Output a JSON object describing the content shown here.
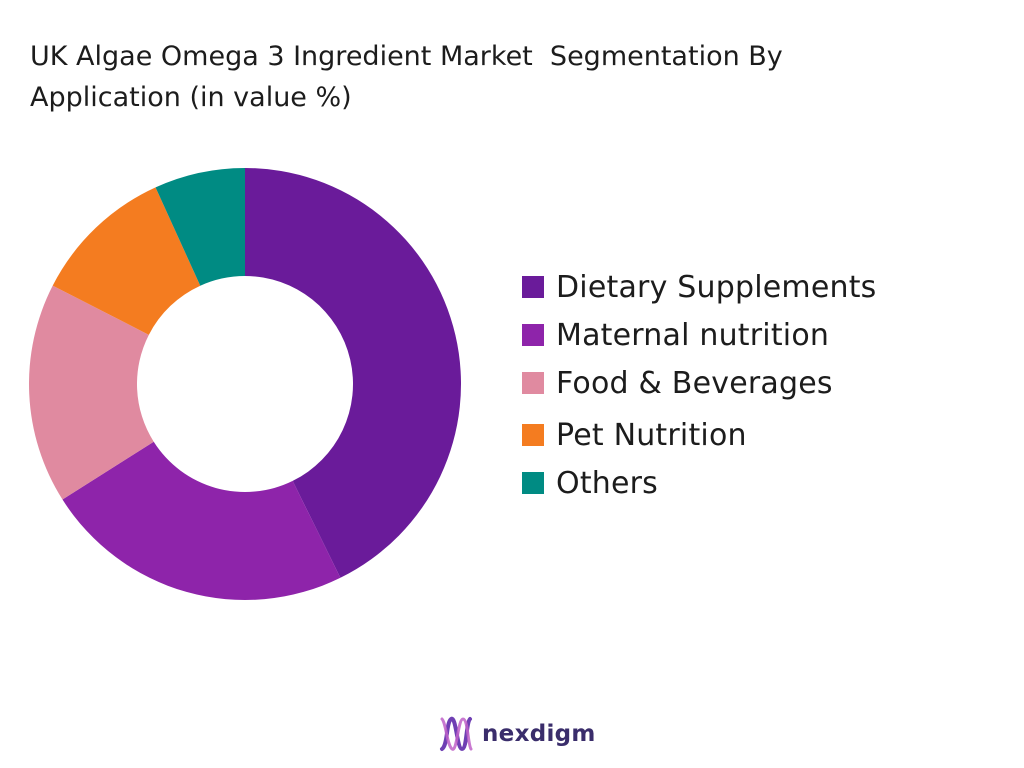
{
  "title": "UK Algae Omega 3 Ingredient Market  Segmentation By\nApplication (in value %)",
  "chart_data": {
    "type": "pie",
    "variant": "donut",
    "legend_position": "right",
    "categories": [
      "Dietary Supplements",
      "Maternal nutrition",
      "Food & Beverages",
      "Pet Nutrition",
      "Others"
    ],
    "values": [
      44,
      24,
      17,
      11,
      7
    ],
    "colors": [
      "#6a1b9a",
      "#8e24aa",
      "#e08aa0",
      "#f47c20",
      "#008b83"
    ]
  },
  "brand": {
    "name": "nexdigm",
    "icon": "nexdigm-logo-icon",
    "colors": [
      "#c062c8",
      "#6f3fb3"
    ]
  }
}
